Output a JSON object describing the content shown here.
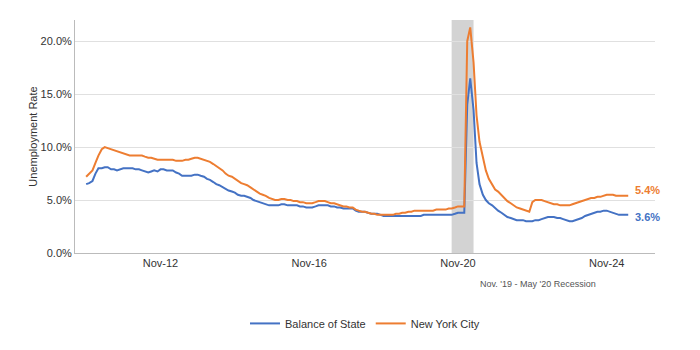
{
  "chart_data": {
    "type": "line",
    "ylabel": "Unemployment Rate",
    "x": [
      2010.0,
      2010.08,
      2010.17,
      2010.25,
      2010.33,
      2010.42,
      2010.5,
      2010.58,
      2010.67,
      2010.75,
      2010.83,
      2010.92,
      2011.0,
      2011.08,
      2011.17,
      2011.25,
      2011.33,
      2011.42,
      2011.5,
      2011.58,
      2011.67,
      2011.75,
      2011.83,
      2011.92,
      2012.0,
      2012.08,
      2012.17,
      2012.25,
      2012.33,
      2012.42,
      2012.5,
      2012.58,
      2012.67,
      2012.75,
      2012.83,
      2012.92,
      2013.0,
      2013.08,
      2013.17,
      2013.25,
      2013.33,
      2013.42,
      2013.5,
      2013.58,
      2013.67,
      2013.75,
      2013.83,
      2013.92,
      2014.0,
      2014.08,
      2014.17,
      2014.25,
      2014.33,
      2014.42,
      2014.5,
      2014.58,
      2014.67,
      2014.75,
      2014.83,
      2014.92,
      2015.0,
      2015.08,
      2015.17,
      2015.25,
      2015.33,
      2015.42,
      2015.5,
      2015.58,
      2015.67,
      2015.75,
      2015.83,
      2015.92,
      2016.0,
      2016.08,
      2016.17,
      2016.25,
      2016.33,
      2016.42,
      2016.5,
      2016.58,
      2016.67,
      2016.75,
      2016.83,
      2016.92,
      2017.0,
      2017.08,
      2017.17,
      2017.25,
      2017.33,
      2017.42,
      2017.5,
      2017.58,
      2017.67,
      2017.75,
      2017.83,
      2017.92,
      2018.0,
      2018.08,
      2018.17,
      2018.25,
      2018.33,
      2018.42,
      2018.5,
      2018.58,
      2018.67,
      2018.75,
      2018.83,
      2018.92,
      2019.0,
      2019.08,
      2019.17,
      2019.25,
      2019.33,
      2019.42,
      2019.5,
      2019.58,
      2019.67,
      2019.75,
      2019.83,
      2019.92,
      2020.0,
      2020.08,
      2020.17,
      2020.25,
      2020.33,
      2020.42,
      2020.5,
      2020.58,
      2020.67,
      2020.75,
      2020.83,
      2020.92,
      2021.0,
      2021.08,
      2021.17,
      2021.25,
      2021.33,
      2021.42,
      2021.5,
      2021.58,
      2021.67,
      2021.75,
      2021.83,
      2021.92,
      2022.0,
      2022.08,
      2022.17,
      2022.25,
      2022.33,
      2022.42,
      2022.5,
      2022.58,
      2022.67,
      2022.75,
      2022.83,
      2022.92,
      2023.0,
      2023.08,
      2023.17,
      2023.25,
      2023.33,
      2023.42,
      2023.5,
      2023.58,
      2023.67,
      2023.75,
      2023.83,
      2023.92,
      2024.0,
      2024.08,
      2024.17,
      2024.25,
      2024.33,
      2024.42,
      2024.5,
      2024.58
    ],
    "series": [
      {
        "name": "Balance of State",
        "color": "#4472C4",
        "end_label": "3.6%",
        "values": [
          6.5,
          6.6,
          6.8,
          7.5,
          8.0,
          8.0,
          8.1,
          8.1,
          7.9,
          7.9,
          7.8,
          7.9,
          8.0,
          8.0,
          8.0,
          8.0,
          7.9,
          7.9,
          7.8,
          7.7,
          7.6,
          7.7,
          7.8,
          7.7,
          7.9,
          7.9,
          7.8,
          7.8,
          7.8,
          7.6,
          7.5,
          7.3,
          7.3,
          7.3,
          7.3,
          7.4,
          7.4,
          7.3,
          7.2,
          7.0,
          6.9,
          6.7,
          6.5,
          6.4,
          6.2,
          6.0,
          5.9,
          5.8,
          5.7,
          5.5,
          5.4,
          5.4,
          5.3,
          5.2,
          5.0,
          4.9,
          4.8,
          4.7,
          4.6,
          4.5,
          4.5,
          4.5,
          4.5,
          4.6,
          4.6,
          4.5,
          4.5,
          4.5,
          4.5,
          4.4,
          4.4,
          4.3,
          4.3,
          4.3,
          4.4,
          4.5,
          4.5,
          4.5,
          4.5,
          4.4,
          4.4,
          4.3,
          4.3,
          4.2,
          4.2,
          4.2,
          4.2,
          4.0,
          3.9,
          3.9,
          3.9,
          3.8,
          3.7,
          3.7,
          3.7,
          3.6,
          3.5,
          3.5,
          3.5,
          3.5,
          3.5,
          3.5,
          3.5,
          3.5,
          3.5,
          3.5,
          3.5,
          3.5,
          3.5,
          3.6,
          3.6,
          3.6,
          3.6,
          3.6,
          3.6,
          3.6,
          3.6,
          3.6,
          3.6,
          3.7,
          3.8,
          3.8,
          3.8,
          14.0,
          16.5,
          13.5,
          8.5,
          6.5,
          5.5,
          5.0,
          4.7,
          4.5,
          4.2,
          4.0,
          3.8,
          3.6,
          3.4,
          3.3,
          3.2,
          3.1,
          3.1,
          3.1,
          3.0,
          3.0,
          3.0,
          3.1,
          3.1,
          3.2,
          3.3,
          3.4,
          3.4,
          3.4,
          3.3,
          3.3,
          3.2,
          3.1,
          3.0,
          3.0,
          3.1,
          3.2,
          3.3,
          3.5,
          3.6,
          3.7,
          3.8,
          3.9,
          3.9,
          4.0,
          4.0,
          3.9,
          3.8,
          3.7,
          3.6,
          3.6,
          3.6,
          3.6
        ]
      },
      {
        "name": "New York City",
        "color": "#ED7D31",
        "end_label": "5.4%",
        "values": [
          7.2,
          7.5,
          7.8,
          8.5,
          9.2,
          9.8,
          10.0,
          9.9,
          9.8,
          9.7,
          9.6,
          9.5,
          9.4,
          9.3,
          9.2,
          9.2,
          9.2,
          9.2,
          9.2,
          9.1,
          9.0,
          9.0,
          8.9,
          8.8,
          8.8,
          8.8,
          8.8,
          8.8,
          8.8,
          8.7,
          8.7,
          8.7,
          8.8,
          8.8,
          8.9,
          9.0,
          9.0,
          8.9,
          8.8,
          8.7,
          8.6,
          8.4,
          8.2,
          8.0,
          7.8,
          7.5,
          7.3,
          7.2,
          7.0,
          6.8,
          6.6,
          6.5,
          6.4,
          6.2,
          6.0,
          5.8,
          5.6,
          5.5,
          5.4,
          5.2,
          5.1,
          5.0,
          5.0,
          5.1,
          5.1,
          5.0,
          5.0,
          4.9,
          4.9,
          4.8,
          4.8,
          4.7,
          4.7,
          4.7,
          4.8,
          4.9,
          4.9,
          4.9,
          4.8,
          4.7,
          4.7,
          4.6,
          4.5,
          4.4,
          4.4,
          4.3,
          4.3,
          4.1,
          4.0,
          3.9,
          3.9,
          3.8,
          3.7,
          3.7,
          3.6,
          3.6,
          3.6,
          3.6,
          3.6,
          3.6,
          3.7,
          3.7,
          3.8,
          3.8,
          3.9,
          3.9,
          4.0,
          4.0,
          4.0,
          4.0,
          4.0,
          4.0,
          4.0,
          4.1,
          4.1,
          4.1,
          4.1,
          4.2,
          4.2,
          4.3,
          4.4,
          4.4,
          4.4,
          20.0,
          21.3,
          18.0,
          13.0,
          10.5,
          9.0,
          7.8,
          7.0,
          6.5,
          6.0,
          5.8,
          5.5,
          5.2,
          4.9,
          4.7,
          4.5,
          4.3,
          4.2,
          4.1,
          4.0,
          3.9,
          4.8,
          5.0,
          5.0,
          5.0,
          4.9,
          4.8,
          4.7,
          4.6,
          4.6,
          4.5,
          4.5,
          4.5,
          4.5,
          4.6,
          4.7,
          4.8,
          4.9,
          5.0,
          5.1,
          5.2,
          5.2,
          5.3,
          5.3,
          5.4,
          5.5,
          5.5,
          5.5,
          5.4,
          5.4,
          5.4,
          5.4,
          5.4
        ]
      }
    ],
    "shaded_ranges": [
      {
        "start": 2019.83,
        "end": 2020.42,
        "label": "Nov. '19 - May '20 Recession",
        "color": "#c8c8c8"
      }
    ],
    "xlim": [
      2009.7,
      2025.3
    ],
    "xticks": [
      {
        "value": 2012,
        "label": "Nov-12"
      },
      {
        "value": 2016,
        "label": "Nov-16"
      },
      {
        "value": 2020,
        "label": "Nov-20"
      },
      {
        "value": 2024,
        "label": "Nov-24"
      }
    ],
    "ylim": [
      0,
      22
    ],
    "yticks": [
      {
        "value": 0,
        "label": "0.0%"
      },
      {
        "value": 5,
        "label": "5.0%"
      },
      {
        "value": 10,
        "label": "10.0%"
      },
      {
        "value": 15,
        "label": "15.0%"
      },
      {
        "value": 20,
        "label": "20.0%"
      }
    ],
    "grid": "y",
    "legend": "bottom"
  }
}
